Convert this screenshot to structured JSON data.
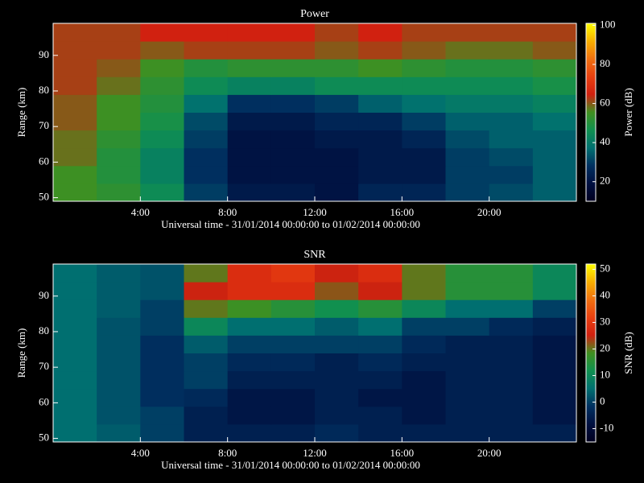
{
  "chart_data": [
    {
      "type": "heatmap",
      "title": "Power",
      "xlabel": "Universal time - 31/01/2014 00:00:00 to 01/02/2014 00:00:00",
      "ylabel": "Range (km)",
      "colorbar_label": "Power (dB)",
      "x_bins": [
        0,
        2,
        4,
        6,
        8,
        10,
        12,
        14,
        16,
        18,
        20,
        22,
        24
      ],
      "y_bins": [
        49,
        54,
        59,
        64,
        69,
        74,
        79,
        84,
        89,
        94,
        99
      ],
      "z": [
        [
          55,
          52,
          45,
          30,
          22,
          22,
          20,
          25,
          25,
          30,
          32,
          35
        ],
        [
          55,
          50,
          42,
          28,
          20,
          20,
          20,
          22,
          22,
          30,
          30,
          35
        ],
        [
          58,
          50,
          42,
          28,
          20,
          20,
          20,
          22,
          22,
          30,
          32,
          35
        ],
        [
          58,
          52,
          45,
          30,
          20,
          20,
          22,
          22,
          25,
          32,
          35,
          35
        ],
        [
          60,
          55,
          48,
          32,
          22,
          22,
          25,
          25,
          30,
          35,
          35,
          38
        ],
        [
          60,
          55,
          50,
          38,
          28,
          28,
          30,
          35,
          38,
          40,
          40,
          42
        ],
        [
          62,
          58,
          52,
          45,
          42,
          42,
          45,
          45,
          45,
          45,
          45,
          48
        ],
        [
          62,
          60,
          55,
          50,
          52,
          52,
          52,
          55,
          52,
          50,
          50,
          52
        ],
        [
          62,
          62,
          60,
          62,
          62,
          62,
          60,
          62,
          60,
          58,
          58,
          60
        ],
        [
          62,
          62,
          65,
          65,
          65,
          65,
          62,
          65,
          62,
          62,
          62,
          62
        ]
      ],
      "xlim": [
        0,
        24
      ],
      "ylim": [
        49,
        99
      ],
      "xticks": [
        {
          "value": 4,
          "label": "4:00"
        },
        {
          "value": 8,
          "label": "8:00"
        },
        {
          "value": 12,
          "label": "12:00"
        },
        {
          "value": 16,
          "label": "16:00"
        },
        {
          "value": 20,
          "label": "20:00"
        }
      ],
      "yticks": [
        50,
        60,
        70,
        80,
        90
      ],
      "clim": [
        10,
        101
      ],
      "cticks": [
        20,
        40,
        60,
        80,
        100
      ],
      "colormap": [
        "#000020",
        "#001040",
        "#003060",
        "#007070",
        "#109050",
        "#409020",
        "#d02010",
        "#e84010",
        "#f07010",
        "#f8b000",
        "#ffff00"
      ]
    },
    {
      "type": "heatmap",
      "title": "SNR",
      "xlabel": "Universal time - 31/01/2014 00:00:00 to 01/02/2014 00:00:00",
      "ylabel": "Range (km)",
      "colorbar_label": "SNR (dB)",
      "x_bins": [
        0,
        2,
        4,
        6,
        8,
        10,
        12,
        14,
        16,
        18,
        20,
        22,
        24
      ],
      "y_bins": [
        49,
        54,
        59,
        64,
        69,
        74,
        79,
        84,
        89,
        94,
        99
      ],
      "z": [
        [
          5,
          3,
          0,
          -5,
          -5,
          -5,
          -3,
          -5,
          -5,
          -5,
          -5,
          -5
        ],
        [
          5,
          2,
          0,
          -5,
          -7,
          -7,
          -5,
          -5,
          -7,
          -5,
          -5,
          -7
        ],
        [
          5,
          2,
          -2,
          -3,
          -7,
          -7,
          -5,
          -7,
          -7,
          -5,
          -5,
          -7
        ],
        [
          5,
          2,
          -2,
          0,
          -5,
          -5,
          -5,
          -5,
          -7,
          -5,
          -5,
          -7
        ],
        [
          5,
          2,
          -2,
          0,
          -3,
          -3,
          -5,
          -3,
          -5,
          -5,
          -5,
          -7
        ],
        [
          5,
          2,
          -2,
          3,
          0,
          0,
          0,
          0,
          -3,
          -5,
          -5,
          -7
        ],
        [
          5,
          2,
          0,
          10,
          5,
          5,
          3,
          5,
          0,
          0,
          -3,
          -5
        ],
        [
          5,
          3,
          0,
          20,
          18,
          15,
          12,
          15,
          10,
          5,
          5,
          0
        ],
        [
          5,
          3,
          2,
          25,
          28,
          28,
          22,
          25,
          20,
          15,
          15,
          10
        ],
        [
          5,
          3,
          2,
          20,
          28,
          30,
          25,
          28,
          20,
          15,
          15,
          10
        ]
      ],
      "xlim": [
        0,
        24
      ],
      "ylim": [
        49,
        99
      ],
      "xticks": [
        {
          "value": 4,
          "label": "4:00"
        },
        {
          "value": 8,
          "label": "8:00"
        },
        {
          "value": 12,
          "label": "12:00"
        },
        {
          "value": 16,
          "label": "16:00"
        },
        {
          "value": 20,
          "label": "20:00"
        }
      ],
      "yticks": [
        50,
        60,
        70,
        80,
        90
      ],
      "clim": [
        -15,
        52
      ],
      "cticks": [
        -10,
        0,
        10,
        20,
        30,
        40,
        50
      ],
      "colormap": [
        "#000020",
        "#001040",
        "#003060",
        "#007070",
        "#109050",
        "#409020",
        "#d02010",
        "#e84010",
        "#f07010",
        "#f8b000",
        "#ffff00"
      ]
    }
  ]
}
